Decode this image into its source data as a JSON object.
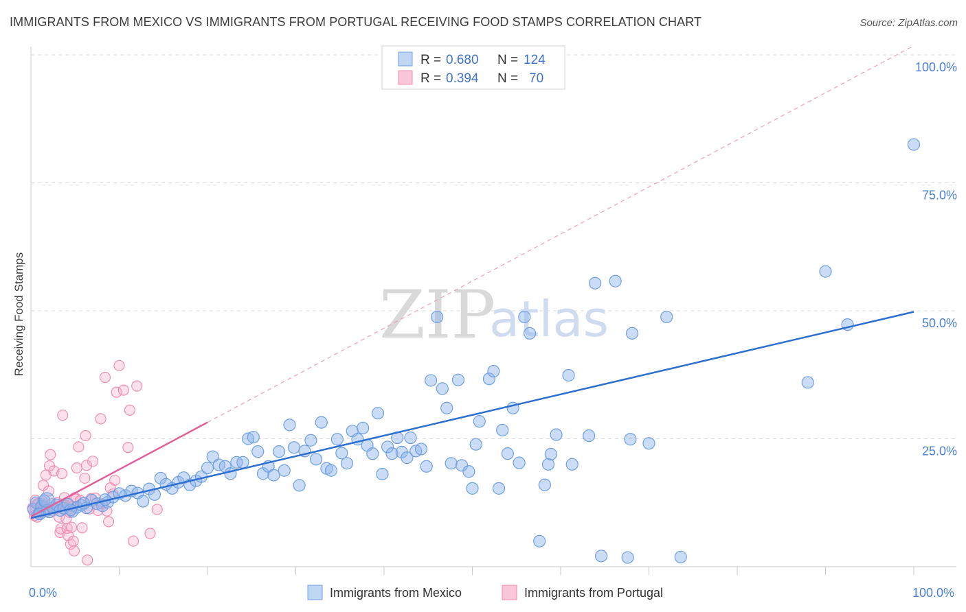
{
  "title": "IMMIGRANTS FROM MEXICO VS IMMIGRANTS FROM PORTUGAL RECEIVING FOOD STAMPS CORRELATION CHART",
  "source": "Source: ZipAtlas.com",
  "watermark": {
    "zip": "ZIP",
    "atlas": "atlas"
  },
  "colors": {
    "mexico": "#6f9fe0",
    "mexico_line": "#2d6fd0",
    "portugal": "#ef8fb0",
    "portugal_line": "#e0609a",
    "grid": "#d8d8d8"
  },
  "legend": {
    "rows": [
      {
        "r_label": "R =",
        "r_value": "0.680",
        "n_label": "N =",
        "n_value": "124"
      },
      {
        "r_label": "R =",
        "r_value": "0.394",
        "n_label": "N =",
        "n_value": "70"
      }
    ]
  },
  "chart_data": {
    "type": "scatter",
    "title": "IMMIGRANTS FROM MEXICO VS IMMIGRANTS FROM PORTUGAL RECEIVING FOOD STAMPS CORRELATION CHART",
    "xlabel": "",
    "ylabel": "Receiving Food Stamps",
    "xlim": [
      0,
      100
    ],
    "ylim": [
      0,
      100
    ],
    "x_tick_labels": [
      "0.0%",
      "100.0%"
    ],
    "y_tick_values": [
      25,
      50,
      75,
      100
    ],
    "y_tick_labels": [
      "25.0%",
      "50.0%",
      "75.0%",
      "100.0%"
    ],
    "grid": true,
    "legend_position": "bottom",
    "series": [
      {
        "name": "Immigrants from Mexico",
        "R": 0.68,
        "N": 124,
        "trend": {
          "x": [
            0,
            100
          ],
          "y": [
            9.5,
            49.8
          ]
        },
        "points": [
          [
            0.3,
            11.2
          ],
          [
            0.6,
            12.5
          ],
          [
            0.9,
            10.4
          ],
          [
            1.2,
            11.8
          ],
          [
            1.5,
            12.9
          ],
          [
            1.8,
            11.0
          ],
          [
            2.1,
            10.7
          ],
          [
            2.5,
            11.5
          ],
          [
            2.9,
            12.1
          ],
          [
            3.3,
            11.0
          ],
          [
            3.7,
            11.4
          ],
          [
            4.2,
            12.2
          ],
          [
            4.7,
            10.8
          ],
          [
            5.2,
            11.6
          ],
          [
            5.7,
            12.0
          ],
          [
            6.3,
            11.5
          ],
          [
            6.9,
            13.0
          ],
          [
            7.5,
            12.3
          ],
          [
            8.1,
            11.9
          ],
          [
            8.7,
            12.6
          ],
          [
            9.3,
            13.6
          ],
          [
            10.0,
            14.3
          ],
          [
            10.7,
            13.9
          ],
          [
            11.4,
            14.8
          ],
          [
            12.1,
            14.4
          ],
          [
            12.7,
            12.8
          ],
          [
            13.4,
            15.2
          ],
          [
            14.0,
            14.1
          ],
          [
            14.7,
            17.3
          ],
          [
            15.3,
            16.1
          ],
          [
            16.0,
            15.3
          ],
          [
            16.7,
            16.5
          ],
          [
            17.3,
            17.4
          ],
          [
            18.0,
            16.0
          ],
          [
            18.7,
            16.8
          ],
          [
            19.3,
            17.6
          ],
          [
            20.0,
            19.3
          ],
          [
            20.6,
            21.5
          ],
          [
            21.3,
            19.9
          ],
          [
            22.0,
            19.6
          ],
          [
            22.6,
            18.2
          ],
          [
            23.3,
            20.4
          ],
          [
            24.0,
            20.4
          ],
          [
            24.6,
            25.0
          ],
          [
            25.2,
            25.3
          ],
          [
            25.7,
            22.5
          ],
          [
            26.3,
            18.2
          ],
          [
            26.9,
            19.6
          ],
          [
            27.5,
            17.9
          ],
          [
            28.1,
            22.5
          ],
          [
            28.7,
            18.8
          ],
          [
            29.3,
            27.7
          ],
          [
            29.8,
            23.3
          ],
          [
            30.4,
            15.9
          ],
          [
            31.0,
            22.6
          ],
          [
            31.7,
            24.7
          ],
          [
            32.3,
            21.0
          ],
          [
            32.9,
            28.2
          ],
          [
            33.5,
            19.2
          ],
          [
            34.0,
            18.8
          ],
          [
            34.7,
            24.9
          ],
          [
            35.2,
            22.2
          ],
          [
            35.8,
            20.2
          ],
          [
            36.4,
            26.5
          ],
          [
            37.0,
            24.9
          ],
          [
            37.6,
            27.1
          ],
          [
            38.1,
            23.7
          ],
          [
            38.7,
            22.1
          ],
          [
            39.3,
            30.0
          ],
          [
            39.8,
            18.1
          ],
          [
            40.4,
            23.4
          ],
          [
            40.9,
            22.1
          ],
          [
            41.5,
            25.2
          ],
          [
            42.0,
            22.4
          ],
          [
            42.6,
            21.3
          ],
          [
            43.0,
            25.2
          ],
          [
            43.6,
            22.6
          ],
          [
            44.2,
            23.0
          ],
          [
            44.8,
            19.6
          ],
          [
            45.3,
            36.4
          ],
          [
            46.0,
            48.8
          ],
          [
            46.6,
            34.8
          ],
          [
            47.1,
            31.0
          ],
          [
            47.6,
            20.2
          ],
          [
            48.4,
            36.5
          ],
          [
            48.8,
            19.8
          ],
          [
            49.6,
            18.6
          ],
          [
            50.0,
            15.3
          ],
          [
            50.8,
            28.4
          ],
          [
            50.4,
            23.9
          ],
          [
            51.9,
            36.7
          ],
          [
            52.4,
            38.2
          ],
          [
            53.0,
            15.3
          ],
          [
            53.4,
            26.7
          ],
          [
            54.0,
            22.1
          ],
          [
            54.6,
            31.0
          ],
          [
            55.3,
            20.3
          ],
          [
            55.9,
            48.8
          ],
          [
            56.5,
            45.6
          ],
          [
            57.6,
            5.0
          ],
          [
            58.2,
            16.0
          ],
          [
            58.6,
            20.0
          ],
          [
            58.9,
            22.0
          ],
          [
            59.5,
            25.8
          ],
          [
            60.9,
            37.4
          ],
          [
            61.3,
            20.0
          ],
          [
            63.2,
            25.6
          ],
          [
            63.9,
            55.4
          ],
          [
            64.6,
            2.1
          ],
          [
            66.2,
            55.8
          ],
          [
            67.6,
            1.8
          ],
          [
            67.9,
            24.9
          ],
          [
            68.1,
            45.6
          ],
          [
            70.0,
            24.1
          ],
          [
            72.0,
            48.8
          ],
          [
            73.6,
            1.9
          ],
          [
            88.0,
            36.0
          ],
          [
            90.0,
            57.7
          ],
          [
            92.5,
            47.3
          ],
          [
            100.0,
            82.5
          ],
          [
            1.0,
            10.3
          ],
          [
            4.5,
            11.1
          ],
          [
            6.0,
            12.4
          ],
          [
            8.4,
            13.1
          ]
        ]
      },
      {
        "name": "Immigrants from Portugal",
        "R": 0.394,
        "N": 70,
        "trend": {
          "x": [
            0,
            20
          ],
          "y": [
            9.8,
            28.2
          ]
        },
        "points": [
          [
            0.2,
            11.5
          ],
          [
            0.4,
            10.0
          ],
          [
            0.5,
            13.0
          ],
          [
            0.7,
            9.7
          ],
          [
            0.8,
            12.2
          ],
          [
            1.0,
            10.9
          ],
          [
            1.1,
            11.8
          ],
          [
            1.3,
            12.8
          ],
          [
            1.4,
            15.9
          ],
          [
            1.6,
            10.7
          ],
          [
            1.7,
            17.9
          ],
          [
            1.8,
            11.3
          ],
          [
            2.0,
            14.8
          ],
          [
            2.1,
            19.7
          ],
          [
            2.2,
            21.9
          ],
          [
            2.3,
            12.3
          ],
          [
            2.5,
            10.9
          ],
          [
            2.6,
            18.7
          ],
          [
            2.8,
            11.3
          ],
          [
            3.0,
            12.5
          ],
          [
            3.2,
            9.7
          ],
          [
            3.3,
            6.7
          ],
          [
            3.4,
            7.4
          ],
          [
            3.5,
            18.2
          ],
          [
            3.6,
            29.6
          ],
          [
            3.7,
            11.9
          ],
          [
            3.8,
            13.5
          ],
          [
            3.9,
            12.0
          ],
          [
            4.0,
            9.4
          ],
          [
            4.1,
            7.5
          ],
          [
            4.2,
            6.1
          ],
          [
            4.3,
            11.3
          ],
          [
            4.4,
            10.6
          ],
          [
            4.5,
            4.4
          ],
          [
            4.6,
            7.7
          ],
          [
            4.7,
            11.8
          ],
          [
            4.8,
            5.0
          ],
          [
            4.9,
            3.1
          ],
          [
            5.0,
            13.5
          ],
          [
            5.1,
            13.2
          ],
          [
            5.2,
            19.3
          ],
          [
            5.4,
            23.4
          ],
          [
            5.6,
            12.9
          ],
          [
            5.8,
            7.6
          ],
          [
            6.1,
            17.3
          ],
          [
            6.2,
            25.6
          ],
          [
            6.3,
            19.8
          ],
          [
            6.4,
            1.3
          ],
          [
            6.6,
            11.3
          ],
          [
            6.8,
            13.3
          ],
          [
            7.0,
            20.6
          ],
          [
            7.3,
            13.4
          ],
          [
            7.6,
            11.0
          ],
          [
            7.9,
            28.9
          ],
          [
            8.1,
            12.3
          ],
          [
            8.4,
            37.0
          ],
          [
            8.6,
            10.9
          ],
          [
            8.8,
            8.8
          ],
          [
            9.0,
            15.4
          ],
          [
            9.3,
            14.2
          ],
          [
            9.5,
            16.9
          ],
          [
            9.7,
            34.1
          ],
          [
            10.0,
            39.3
          ],
          [
            10.5,
            34.5
          ],
          [
            11.0,
            23.3
          ],
          [
            11.2,
            30.6
          ],
          [
            11.6,
            5.0
          ],
          [
            12.0,
            35.3
          ],
          [
            13.5,
            6.5
          ],
          [
            14.3,
            11.2
          ]
        ]
      }
    ]
  },
  "bottom_legend": {
    "items": [
      "Immigrants from Mexico",
      "Immigrants from Portugal"
    ]
  }
}
